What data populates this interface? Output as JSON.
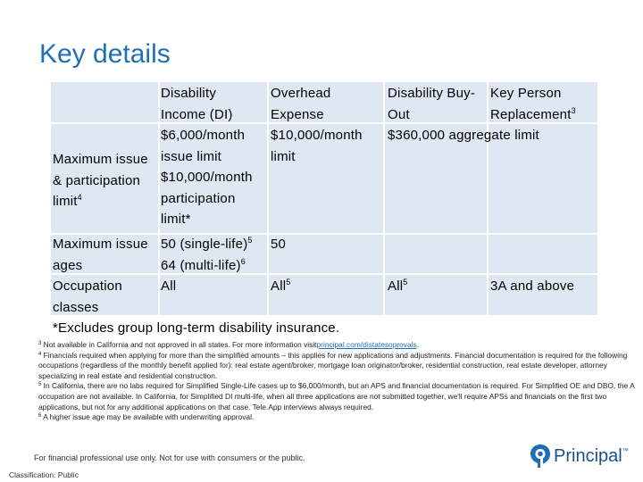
{
  "title": "Key details",
  "table": {
    "headers": [
      {
        "line1": "Disability",
        "line2": "Income (DI)"
      },
      {
        "line1": "Overhead",
        "line2": "Expense"
      },
      {
        "line1": "Disability Buy-",
        "line2": "Out"
      },
      {
        "line1": "Key Person",
        "line2": "Replacement",
        "sup": "3"
      }
    ],
    "rows": [
      {
        "label": [
          "Maximum issue",
          "& participation",
          "limit"
        ],
        "label_sup": "4",
        "di": [
          "$6,000/month",
          "issue limit",
          "$10,000/month",
          "participation",
          "limit*"
        ],
        "overhead": [
          "$10,000/month",
          "limit"
        ],
        "buyout": "$360,000 aggregate limit"
      },
      {
        "label": [
          "Maximum issue",
          "ages"
        ],
        "di_1": "50 (single-life)",
        "di_1_sup": "5",
        "di_2": "64 (multi-life)",
        "di_2_sup": "6",
        "overhead": "50"
      },
      {
        "label": [
          "Occupation",
          "classes"
        ],
        "di": "All",
        "overhead": "All",
        "overhead_sup": "5",
        "buyout": "All",
        "buyout_sup": "5",
        "keyperson": "3A and above"
      }
    ],
    "note": "*Excludes group long-term disability insurance."
  },
  "footnotes": {
    "f3_num": "3",
    "f3_text": "Not available in California and not approved in all states. For more information visit",
    "f3_link": "principal.com/distatesoprovals",
    "f3_end": ".",
    "f4_num": "4",
    "f4_text": "Financials required when applying for more than the simplified amounts – this applies for new applications and adjustments. Financial documentation is required for the following occupations (regardless of the monthly benefit applied for): real estate agent/broker, mortgage loan originator/broker, residential construction, real estate developer, attorney specializing in real estate and residential construction.",
    "f5_num": "5",
    "f5_text": "In California, there are no labs required for Simplified Single-Life cases up to $6,000/month, but an APS and financial documentation is required. For Simplified OE and DBO, the A occupation are not available. In California, for Simplified DI multi-life, when all three applications are not submitted together, we'll require APSs and financials on the first two applications, but not for any additional applications on that case. Tele.App interviews always required.",
    "f6_num": "6",
    "f6_text": "A higher issue age may be available with underwriting approval."
  },
  "disclaimer": "For financial professional use only. Not for use with consumers or the public.",
  "classification": "Classification: Public",
  "logo": {
    "name": "Principal",
    "tm": "™",
    "icon": "principal-logo-icon"
  },
  "colors": {
    "title": "#1f6fb8",
    "table_bg": "#dfe7f3",
    "logo": "#1a4f8b"
  }
}
